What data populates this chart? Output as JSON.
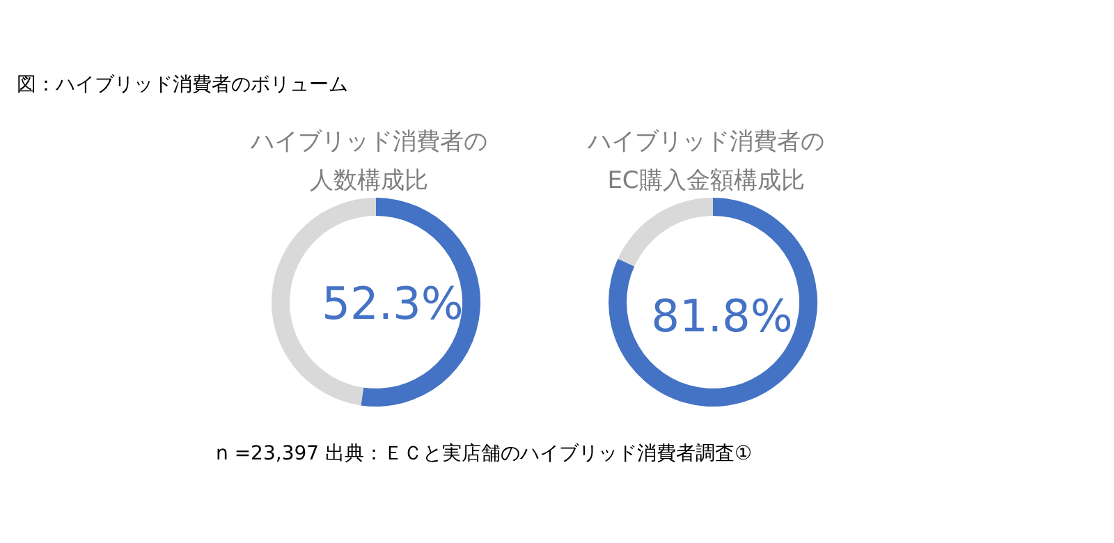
{
  "chart_data": [
    {
      "type": "donut",
      "title": "ハイブリッド消費者の人数構成比",
      "categories": [
        null,
        null
      ],
      "values": [
        52.3,
        47.7
      ],
      "colors": [
        "#4472c4",
        "#d9d9d9"
      ],
      "value_labels": [
        "52.3%",
        null
      ],
      "legend": false,
      "annotations": [
        "図：ハイブリッド消費者のボリューム"
      ]
    },
    {
      "type": "donut",
      "title": "ハイブリッド消費者のEC購入金額構成比",
      "categories": [
        null,
        null
      ],
      "values": [
        81.8,
        18.2
      ],
      "colors": [
        "#4472c4",
        "#d9d9d9"
      ],
      "value_labels": [
        "81.8%",
        null
      ],
      "legend": false,
      "annotations": [
        "n =23,397 出典：ＥＣと実店舗のハイブリッド消費者調査①"
      ]
    }
  ]
}
